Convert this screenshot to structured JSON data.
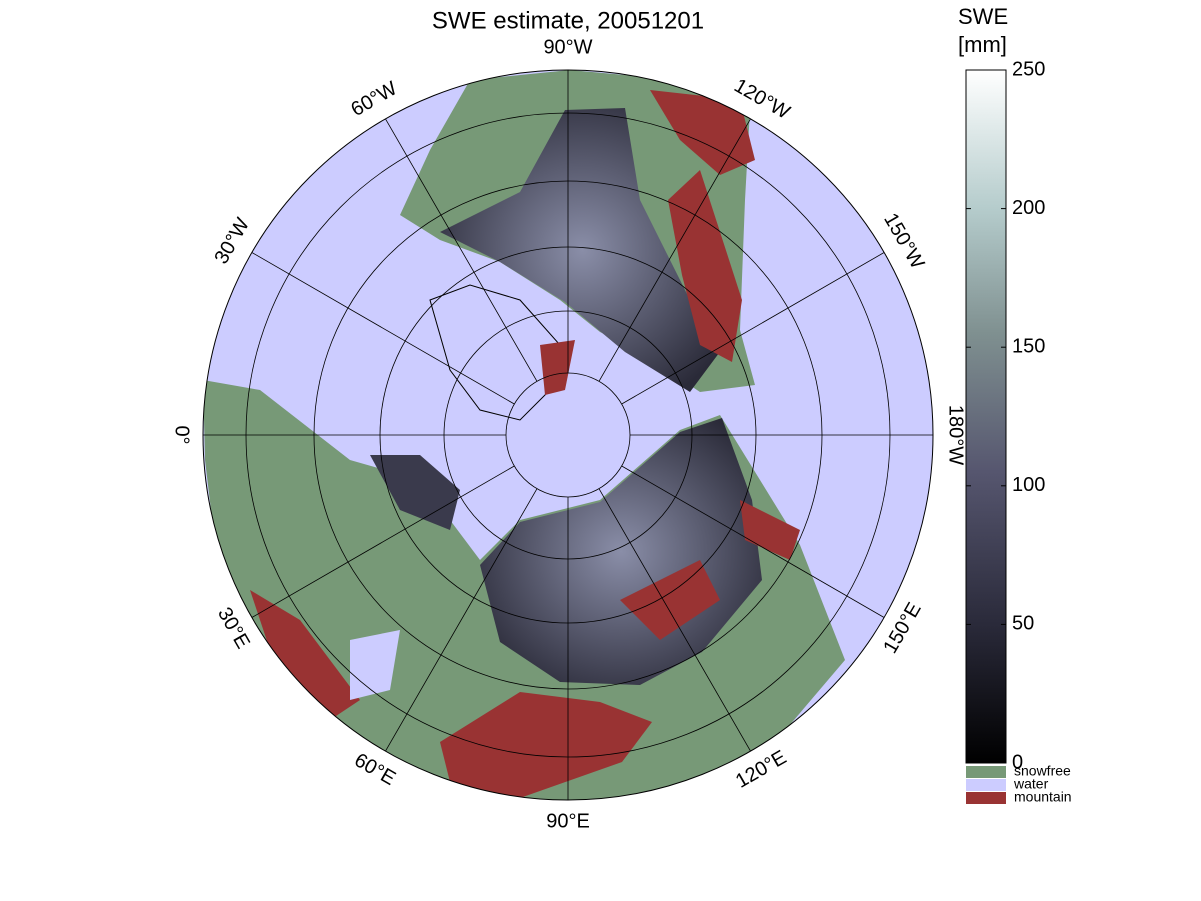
{
  "title": "SWE estimate, 20051201",
  "meridians": [
    {
      "value": -90,
      "label": "90°W"
    },
    {
      "value": -120,
      "label": "120°W"
    },
    {
      "value": -150,
      "label": "150°W"
    },
    {
      "value": -180,
      "label": "180°W"
    },
    {
      "value": 150,
      "label": "150°E"
    },
    {
      "value": 120,
      "label": "120°E"
    },
    {
      "value": 90,
      "label": "90°E"
    },
    {
      "value": 60,
      "label": "60°E"
    },
    {
      "value": 30,
      "label": "30°E"
    },
    {
      "value": 0,
      "label": "0°"
    },
    {
      "value": -30,
      "label": "30°W"
    },
    {
      "value": -60,
      "label": "60°W"
    }
  ],
  "colorbar": {
    "label": [
      "SWE",
      "[mm]"
    ],
    "lim": [
      0,
      250
    ],
    "ticks": [
      0,
      50,
      100,
      150,
      200,
      250
    ],
    "categories": [
      {
        "name": "snowfree",
        "color": "#779977"
      },
      {
        "name": "water",
        "color": "#ccccff"
      },
      {
        "name": "mountain",
        "color": "#993333"
      }
    ]
  }
}
